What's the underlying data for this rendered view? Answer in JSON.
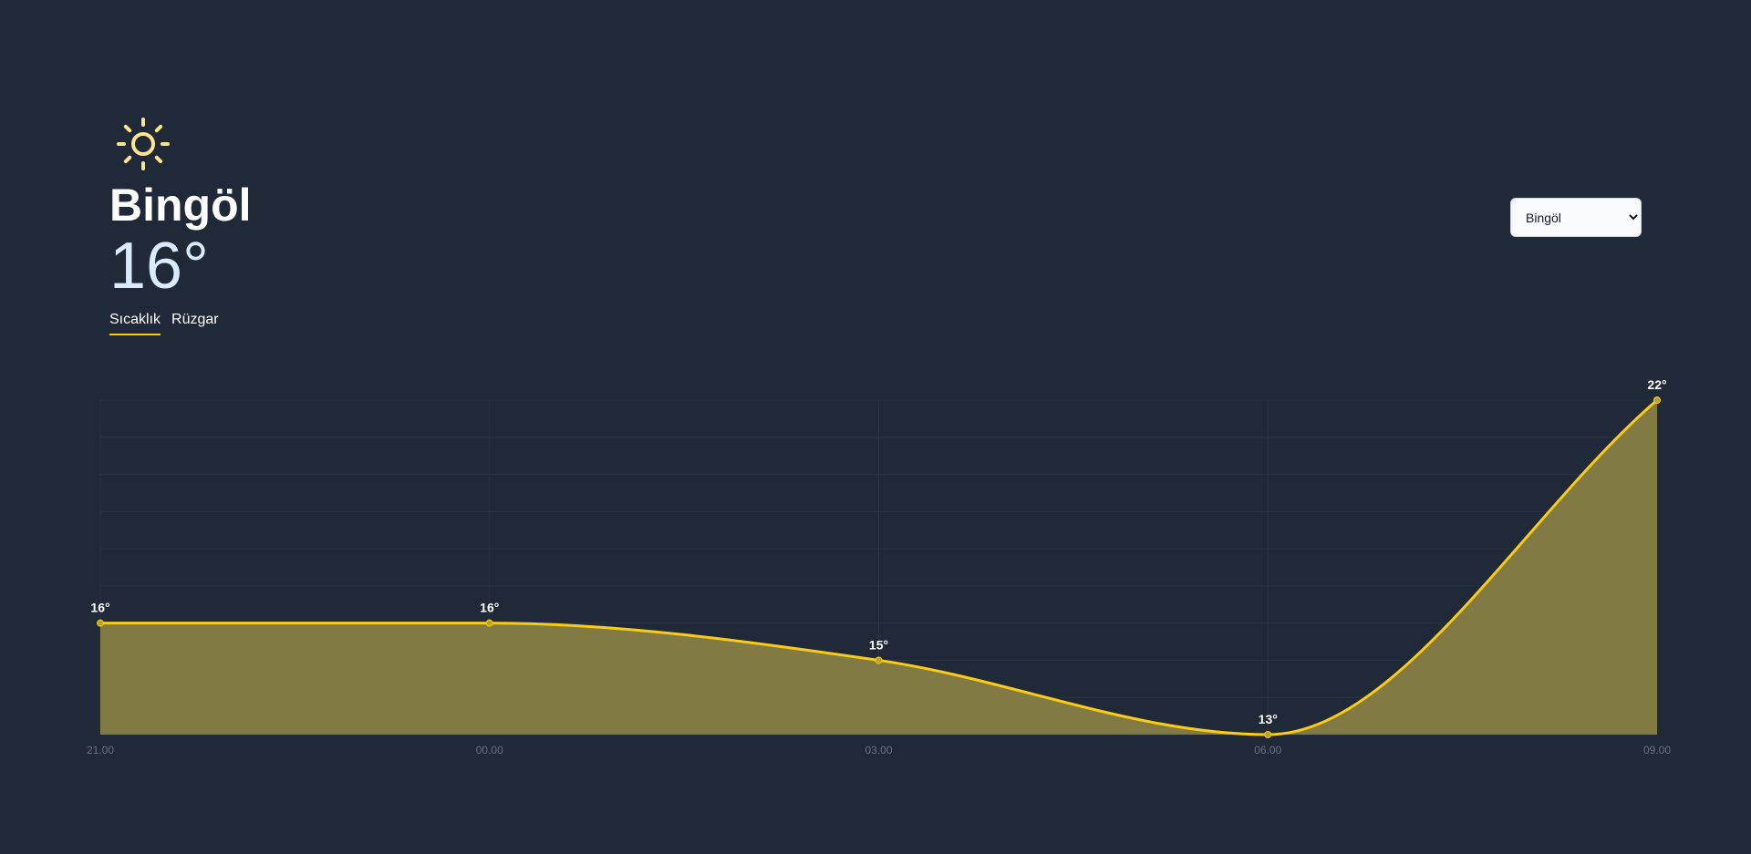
{
  "header": {
    "icon": "sun-icon",
    "city": "Bingöl",
    "temperature": "16°"
  },
  "tabs": [
    {
      "label": "Sıcaklık",
      "active": true
    },
    {
      "label": "Rüzgar",
      "active": false
    }
  ],
  "city_select": {
    "selected": "Bingöl"
  },
  "colors": {
    "background": "#1f2937",
    "accent": "#facc15",
    "area_fill": "#817a43",
    "icon": "#fde68a"
  },
  "chart_data": {
    "type": "area",
    "categories": [
      "21.00",
      "00.00",
      "03.00",
      "06.00",
      "09.00"
    ],
    "values": [
      16,
      16,
      15,
      13,
      22
    ],
    "data_labels": [
      "16°",
      "16°",
      "15°",
      "13°",
      "22°"
    ],
    "ylim": [
      13,
      22
    ],
    "grid": true,
    "legend": "none"
  }
}
